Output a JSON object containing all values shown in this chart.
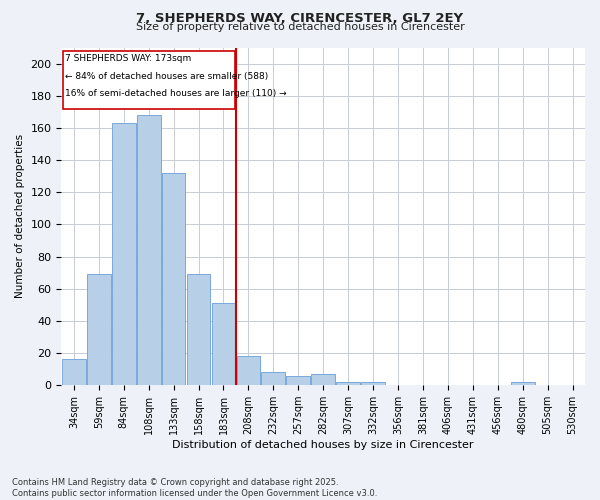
{
  "title1": "7, SHEPHERDS WAY, CIRENCESTER, GL7 2EY",
  "title2": "Size of property relative to detached houses in Cirencester",
  "xlabel": "Distribution of detached houses by size in Cirencester",
  "ylabel": "Number of detached properties",
  "categories": [
    "34sqm",
    "59sqm",
    "84sqm",
    "108sqm",
    "133sqm",
    "158sqm",
    "183sqm",
    "208sqm",
    "232sqm",
    "257sqm",
    "282sqm",
    "307sqm",
    "332sqm",
    "356sqm",
    "381sqm",
    "406sqm",
    "431sqm",
    "456sqm",
    "480sqm",
    "505sqm",
    "530sqm"
  ],
  "values": [
    16,
    69,
    163,
    168,
    132,
    69,
    51,
    18,
    8,
    6,
    7,
    2,
    2,
    0,
    0,
    0,
    0,
    0,
    2,
    0,
    0
  ],
  "bar_color": "#b8cfe8",
  "bar_edge_color": "#6a9fd8",
  "bar_edge_width": 0.6,
  "vline_color": "#cc0000",
  "vline_idx": 6,
  "vline_label": "7 SHEPHERDS WAY: 173sqm",
  "annotation_line1": "← 84% of detached houses are smaller (588)",
  "annotation_line2": "16% of semi-detached houses are larger (110) →",
  "box_edge_color": "#cc0000",
  "ylim": [
    0,
    210
  ],
  "yticks": [
    0,
    20,
    40,
    60,
    80,
    100,
    120,
    140,
    160,
    180,
    200
  ],
  "footnote": "Contains HM Land Registry data © Crown copyright and database right 2025.\nContains public sector information licensed under the Open Government Licence v3.0.",
  "bg_color": "#eef2f8",
  "plot_bg_color": "#ffffff",
  "grid_color": "#c8ccd4"
}
